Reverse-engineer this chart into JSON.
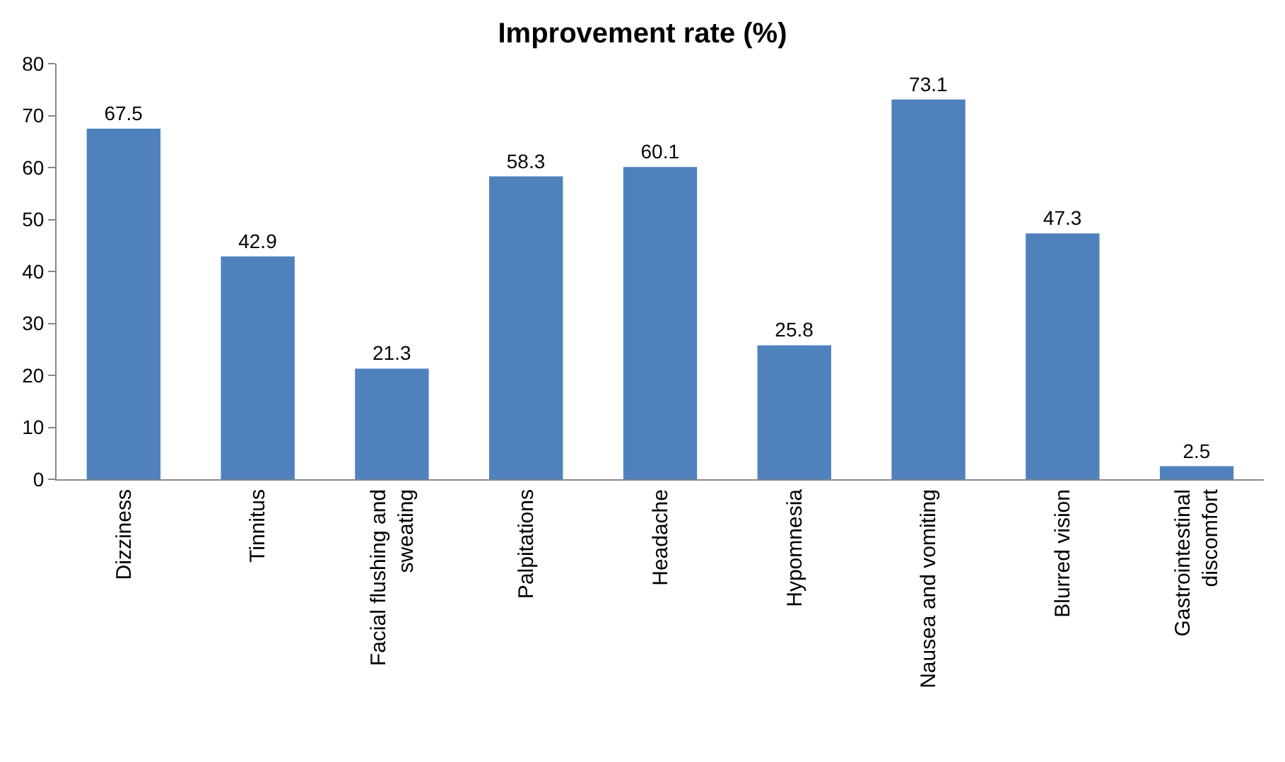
{
  "chart_data": {
    "type": "bar",
    "title": "Improvement rate (%)",
    "categories": [
      "Dizziness",
      "Tinnitus",
      "Facial flushing and sweating",
      "Palpitations",
      "Headache",
      "Hypomnesia",
      "Nausea and vomiting",
      "Blurred vision",
      "Gastrointestinal discomfort"
    ],
    "values": [
      67.5,
      42.9,
      21.3,
      58.3,
      60.1,
      25.8,
      73.1,
      47.3,
      2.5
    ],
    "color": "#4f81bd",
    "ylim": [
      0,
      80
    ],
    "yticks": [
      0,
      10,
      20,
      30,
      40,
      50,
      60,
      70,
      80
    ],
    "data_labels": true
  }
}
